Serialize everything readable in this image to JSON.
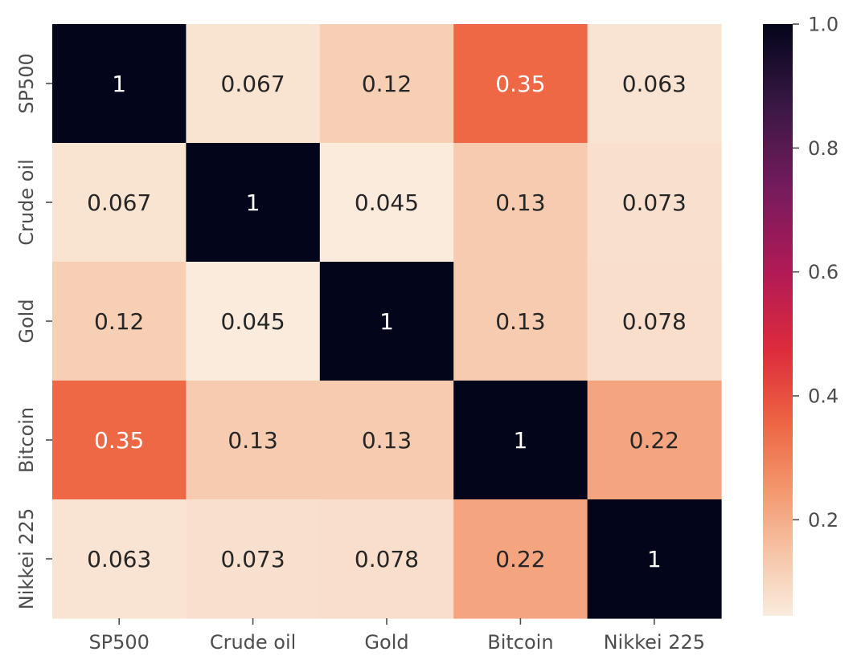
{
  "chart_data": {
    "type": "heatmap",
    "x_categories": [
      "SP500",
      "Crude oil",
      "Gold",
      "Bitcoin",
      "Nikkei 225"
    ],
    "y_categories": [
      "SP500",
      "Crude oil",
      "Gold",
      "Bitcoin",
      "Nikkei 225"
    ],
    "values": [
      [
        1,
        0.067,
        0.12,
        0.35,
        0.063
      ],
      [
        0.067,
        1,
        0.045,
        0.13,
        0.073
      ],
      [
        0.12,
        0.045,
        1,
        0.13,
        0.078
      ],
      [
        0.35,
        0.13,
        0.13,
        1,
        0.22
      ],
      [
        0.063,
        0.073,
        0.078,
        0.22,
        1
      ]
    ],
    "annotations": [
      [
        "1",
        "0.067",
        "0.12",
        "0.35",
        "0.063"
      ],
      [
        "0.067",
        "1",
        "0.045",
        "0.13",
        "0.073"
      ],
      [
        "0.12",
        "0.045",
        "1",
        "0.13",
        "0.078"
      ],
      [
        "0.35",
        "0.13",
        "0.13",
        "1",
        "0.22"
      ],
      [
        "0.063",
        "0.073",
        "0.078",
        "0.22",
        "1"
      ]
    ],
    "colorbar": {
      "range": [
        0.045,
        1.0
      ],
      "ticks": [
        0.2,
        0.4,
        0.6,
        0.8,
        1.0
      ],
      "tick_labels": [
        "0.2",
        "0.4",
        "0.6",
        "0.8",
        "1.0"
      ]
    },
    "colormap": "rocket_r",
    "title": "",
    "xlabel": "",
    "ylabel": "",
    "grid": false
  }
}
